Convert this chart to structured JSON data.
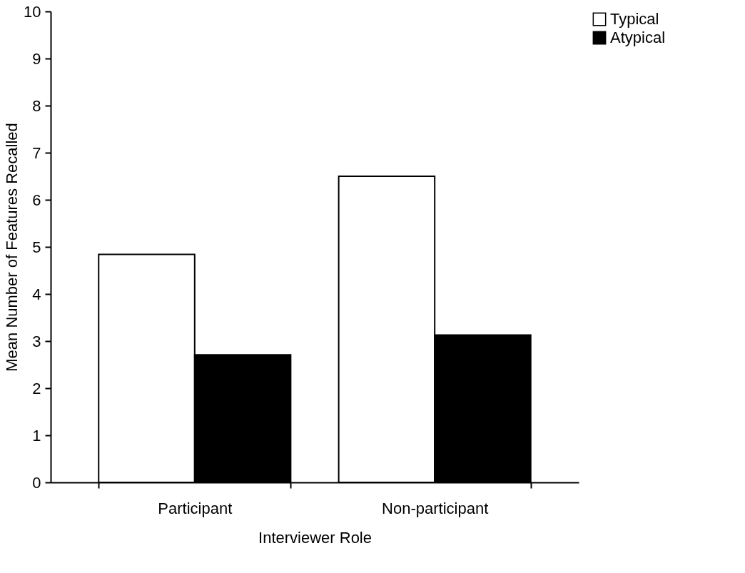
{
  "chart_data": {
    "type": "bar",
    "xlabel": "Interviewer Role",
    "ylabel": "Mean Number of Features Recalled",
    "categories": [
      "Participant",
      "Non-participant"
    ],
    "series": [
      {
        "name": "Typical",
        "color": "#ffffff",
        "values": [
          4.84,
          6.5
        ]
      },
      {
        "name": "Atypical",
        "color": "#000000",
        "values": [
          2.71,
          3.13
        ]
      }
    ],
    "ylim": [
      0,
      10
    ],
    "yticks": [
      0,
      1,
      2,
      3,
      4,
      5,
      6,
      7,
      8,
      9,
      10
    ],
    "grid": false,
    "legend": "right"
  }
}
